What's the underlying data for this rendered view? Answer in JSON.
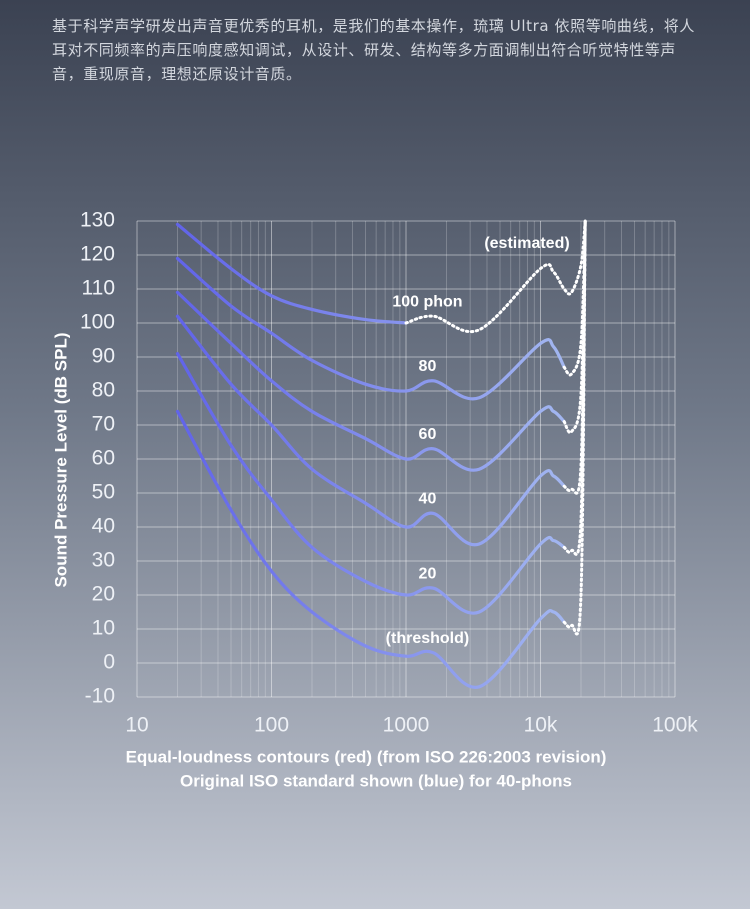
{
  "description": "基于科学声学研发出声音更优秀的耳机，是我们的基本操作，琉璃 Ultra 依照等响曲线，将人耳对不同频率的声压响度感知调试，从设计、研发、结构等多方面调制出符合听觉特性等声音，重现原音，理想还原设计音质。",
  "chart_data": {
    "type": "line",
    "xlabel": [
      "Equal-loudness contours (red) (from ISO 226:2003 revision)",
      "Original ISO standard shown (blue) for 40-phons"
    ],
    "ylabel": "Sound Pressure Level (dB SPL)",
    "annotation": "(estimated)",
    "x_log": true,
    "minor_grid": true,
    "grid": true,
    "line_gradient": [
      "#5a5be8",
      "#b5cef3"
    ],
    "estimated_color": "#ffffff",
    "xlim": [
      10,
      100000
    ],
    "xticks": [
      10,
      100,
      1000,
      {
        "value": 10000,
        "label": "10k"
      },
      {
        "value": 100000,
        "label": "100k"
      }
    ],
    "ylim": [
      -10,
      130
    ],
    "yticks": [
      -10,
      0,
      10,
      20,
      30,
      40,
      50,
      60,
      70,
      80,
      90,
      100,
      110,
      120,
      130
    ],
    "x": [
      20,
      50,
      100,
      200,
      500,
      1000,
      1600,
      3500,
      10000,
      12500,
      15000,
      17000,
      20000,
      21500
    ],
    "series": [
      {
        "name": "(threshold)",
        "values": [
          74,
          45,
          27,
          15,
          5,
          2,
          3,
          -7,
          13,
          15,
          12,
          null,
          null,
          null
        ],
        "estimated": [
          null,
          null,
          null,
          null,
          null,
          null,
          null,
          null,
          null,
          null,
          12,
          11,
          20,
          130
        ]
      },
      {
        "name": "20",
        "values": [
          91,
          64,
          48,
          34,
          24,
          20,
          22,
          15,
          35,
          36,
          34,
          null,
          null,
          null
        ],
        "estimated": [
          null,
          null,
          null,
          null,
          null,
          null,
          null,
          null,
          null,
          null,
          34,
          33,
          42,
          130
        ]
      },
      {
        "name": "40",
        "values": [
          102,
          82,
          70,
          57,
          47,
          40,
          44,
          35,
          55,
          55,
          52,
          null,
          null,
          null
        ],
        "estimated": [
          null,
          null,
          null,
          null,
          null,
          null,
          null,
          null,
          null,
          null,
          52,
          51,
          58,
          130
        ]
      },
      {
        "name": "60",
        "values": [
          109,
          94,
          83,
          74,
          66,
          60,
          63,
          57,
          74,
          74,
          71,
          null,
          null,
          null
        ],
        "estimated": [
          null,
          null,
          null,
          null,
          null,
          null,
          null,
          null,
          null,
          null,
          71,
          68,
          79,
          130
        ]
      },
      {
        "name": "80",
        "values": [
          119,
          105,
          97,
          89,
          82,
          80,
          83,
          78,
          94,
          93,
          87,
          null,
          null,
          null
        ],
        "estimated": [
          null,
          null,
          null,
          null,
          null,
          null,
          null,
          null,
          null,
          null,
          87,
          85,
          94,
          130
        ]
      },
      {
        "name": "100 phon",
        "values": [
          129,
          116,
          108,
          104,
          101,
          100,
          null,
          null,
          null,
          null,
          null,
          null,
          null,
          null
        ],
        "estimated": [
          null,
          null,
          null,
          null,
          null,
          100,
          102,
          98,
          116,
          115,
          110,
          109,
          117,
          130
        ]
      }
    ]
  }
}
